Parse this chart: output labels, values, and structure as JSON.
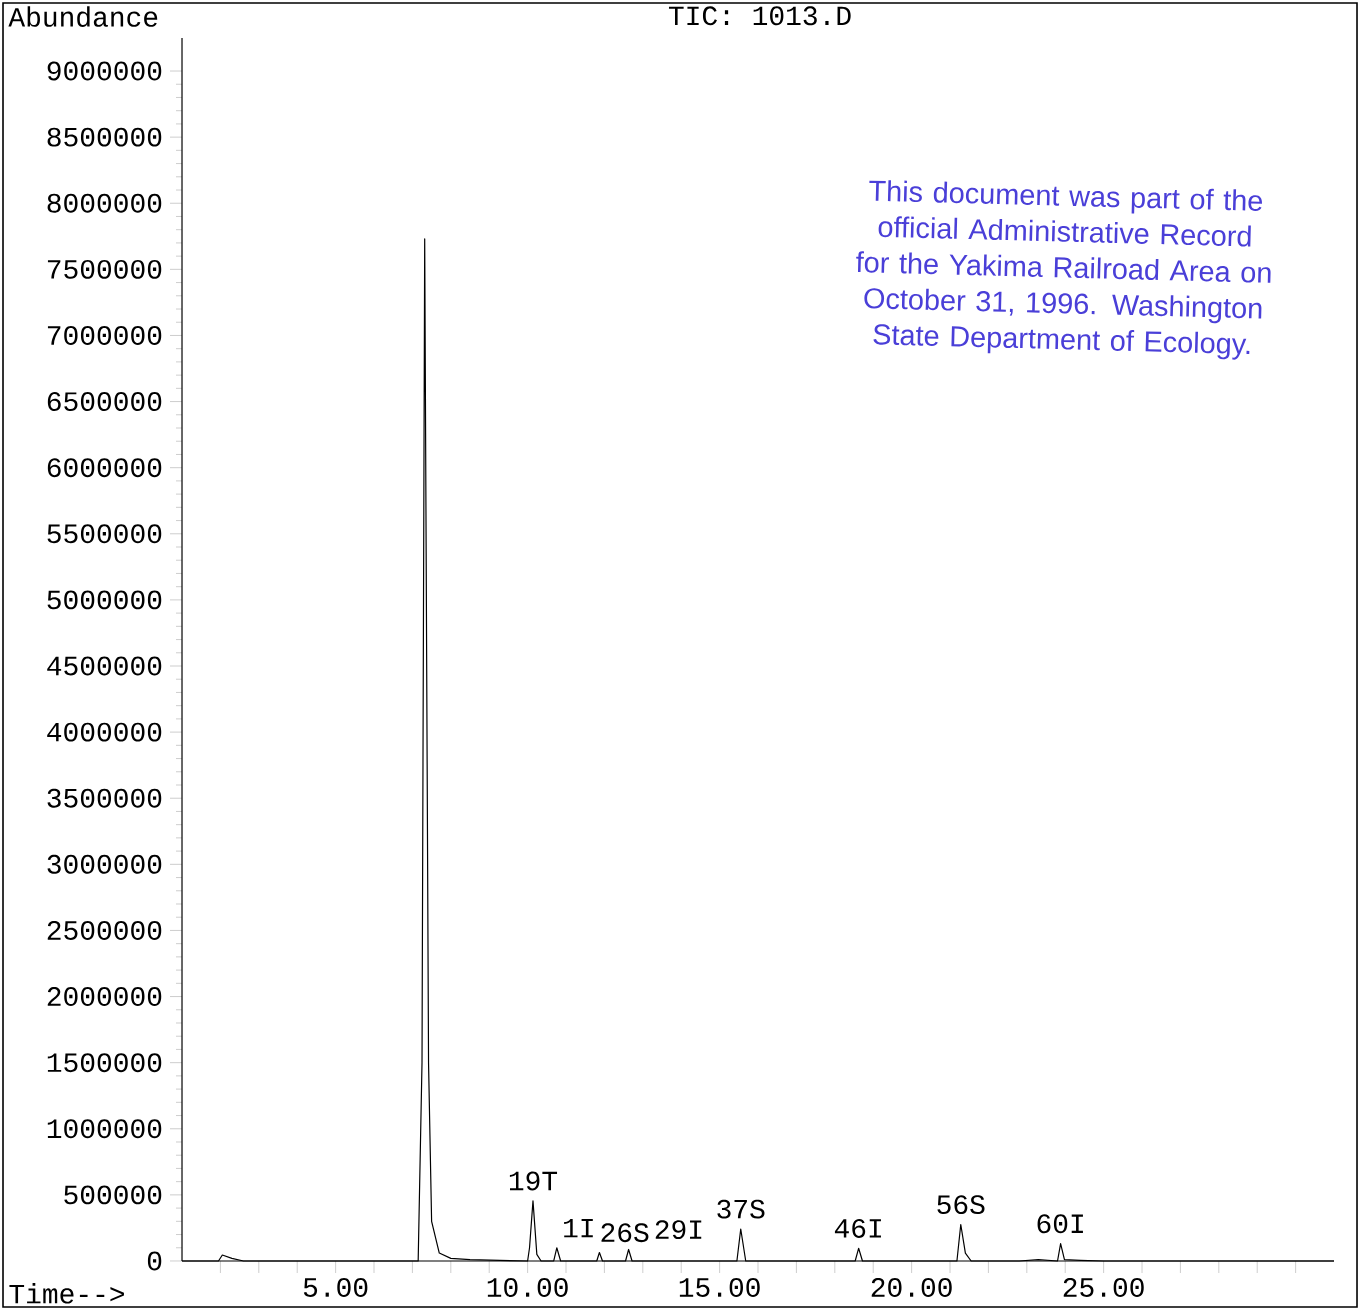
{
  "chart_data": {
    "type": "line",
    "title": "TIC: 1013.D",
    "xlabel": "Time-->",
    "ylabel": "Abundance",
    "xlim": [
      1,
      31
    ],
    "ylim": [
      0,
      9250000
    ],
    "xticks": [
      {
        "value": 2,
        "label": null
      },
      {
        "value": 3,
        "label": null
      },
      {
        "value": 4,
        "label": null
      },
      {
        "value": 5,
        "label": "5.00"
      },
      {
        "value": 6,
        "label": null
      },
      {
        "value": 7,
        "label": null
      },
      {
        "value": 8,
        "label": null
      },
      {
        "value": 9,
        "label": null
      },
      {
        "value": 10,
        "label": "10.00"
      },
      {
        "value": 11,
        "label": null
      },
      {
        "value": 12,
        "label": null
      },
      {
        "value": 13,
        "label": null
      },
      {
        "value": 14,
        "label": null
      },
      {
        "value": 15,
        "label": "15.00"
      },
      {
        "value": 16,
        "label": null
      },
      {
        "value": 17,
        "label": null
      },
      {
        "value": 18,
        "label": null
      },
      {
        "value": 19,
        "label": null
      },
      {
        "value": 20,
        "label": "20.00"
      },
      {
        "value": 21,
        "label": null
      },
      {
        "value": 22,
        "label": null
      },
      {
        "value": 23,
        "label": null
      },
      {
        "value": 24,
        "label": null
      },
      {
        "value": 25,
        "label": "25.00"
      },
      {
        "value": 26,
        "label": null
      },
      {
        "value": 27,
        "label": null
      },
      {
        "value": 28,
        "label": null
      },
      {
        "value": 29,
        "label": null
      },
      {
        "value": 30,
        "label": null
      }
    ],
    "yticks": [
      0,
      500000,
      1000000,
      1500000,
      2000000,
      2500000,
      3000000,
      3500000,
      4000000,
      4500000,
      5000000,
      5500000,
      6000000,
      6500000,
      7000000,
      7500000,
      8000000,
      8500000,
      9000000
    ],
    "series": [
      {
        "color": "#000000",
        "x": [
          1.0,
          1.95,
          2.05,
          2.3,
          2.6,
          7.15,
          7.25,
          7.32,
          7.42,
          7.5,
          7.7,
          8.0,
          8.5,
          10.0,
          10.05,
          10.14,
          10.24,
          10.35,
          10.68,
          10.76,
          10.86,
          11.8,
          11.87,
          11.95,
          12.55,
          12.63,
          12.72,
          15.45,
          15.55,
          15.68,
          18.53,
          18.62,
          18.72,
          21.18,
          21.28,
          21.4,
          21.55,
          22.8,
          23.3,
          23.8,
          23.88,
          23.98,
          24.4,
          25.0,
          31.0
        ],
        "values": [
          0,
          0,
          45000,
          20000,
          0,
          0,
          1500000,
          7730000,
          1500000,
          300000,
          60000,
          20000,
          10000,
          0,
          100000,
          455000,
          50000,
          0,
          0,
          100000,
          0,
          0,
          64000,
          0,
          0,
          87000,
          0,
          0,
          242000,
          0,
          0,
          96000,
          0,
          0,
          276000,
          60000,
          0,
          0,
          10000,
          0,
          131000,
          10000,
          5000,
          0,
          0
        ]
      }
    ],
    "annotations": [
      "This document was part of the official Administrative Record for the Yakima Railroad Area on October 31, 1996. Washington State Department of Ecology.",
      {
        "text": "19T",
        "x": 10.14,
        "y": 455000
      },
      {
        "text": "1I",
        "x": 10.76,
        "y": 100000
      },
      {
        "text": "26S",
        "x": 11.87,
        "y": 64000
      },
      {
        "text": "29I",
        "x": 12.63,
        "y": 87000
      },
      {
        "text": "37S",
        "x": 15.55,
        "y": 242000
      },
      {
        "text": "46I",
        "x": 18.62,
        "y": 96000
      },
      {
        "text": "56S",
        "x": 21.28,
        "y": 276000
      },
      {
        "text": "60I",
        "x": 23.88,
        "y": 131000
      }
    ]
  }
}
